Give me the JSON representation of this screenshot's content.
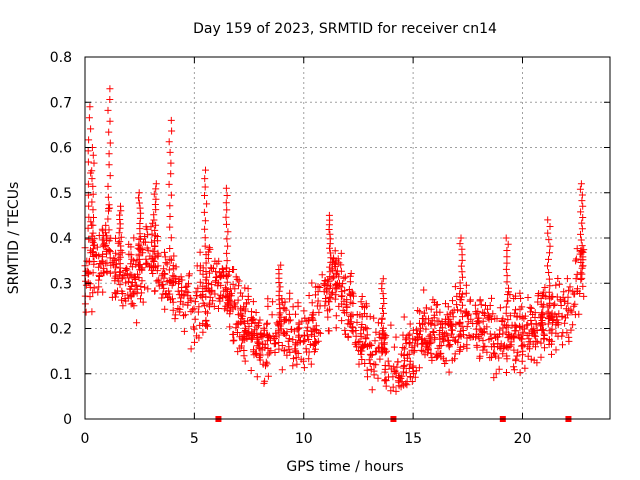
{
  "chart_data": {
    "type": "scatter",
    "title": "Day 159 of 2023, SRMTID for receiver cn14",
    "xlabel": "GPS time / hours",
    "ylabel": "SRMTID / TECUs",
    "xlim": [
      0,
      24
    ],
    "ylim": [
      0,
      0.8
    ],
    "grid": true,
    "marker": "+",
    "color": "#ff0000",
    "x_ticks": [
      0,
      5,
      10,
      15,
      20
    ],
    "x_tick_labels": [
      "0",
      "5",
      "10",
      "15",
      "20"
    ],
    "y_ticks": [
      0,
      0.1,
      0.2,
      0.3,
      0.4,
      0.5,
      0.6,
      0.7,
      0.8
    ],
    "y_tick_labels": [
      "0",
      "0.1",
      "0.2",
      "0.3",
      "0.4",
      "0.5",
      "0.6",
      "0.7",
      "0.8"
    ],
    "zero_markers_x": [
      6.1,
      14.1,
      19.1,
      22.1
    ],
    "trend": [
      [
        0.0,
        0.3
      ],
      [
        0.5,
        0.36
      ],
      [
        1.0,
        0.38
      ],
      [
        1.5,
        0.33
      ],
      [
        2.0,
        0.3
      ],
      [
        2.5,
        0.33
      ],
      [
        3.0,
        0.36
      ],
      [
        3.5,
        0.33
      ],
      [
        4.0,
        0.3
      ],
      [
        4.5,
        0.26
      ],
      [
        5.0,
        0.25
      ],
      [
        5.5,
        0.27
      ],
      [
        6.0,
        0.3
      ],
      [
        6.5,
        0.27
      ],
      [
        7.0,
        0.24
      ],
      [
        7.5,
        0.19
      ],
      [
        8.0,
        0.16
      ],
      [
        8.5,
        0.18
      ],
      [
        9.0,
        0.2
      ],
      [
        9.5,
        0.2
      ],
      [
        10.0,
        0.17
      ],
      [
        10.5,
        0.22
      ],
      [
        11.0,
        0.29
      ],
      [
        11.5,
        0.3
      ],
      [
        12.0,
        0.24
      ],
      [
        12.5,
        0.19
      ],
      [
        13.0,
        0.16
      ],
      [
        13.5,
        0.15
      ],
      [
        14.0,
        0.13
      ],
      [
        14.5,
        0.12
      ],
      [
        15.0,
        0.15
      ],
      [
        15.5,
        0.19
      ],
      [
        16.0,
        0.2
      ],
      [
        16.5,
        0.19
      ],
      [
        17.0,
        0.21
      ],
      [
        17.5,
        0.22
      ],
      [
        18.0,
        0.2
      ],
      [
        18.5,
        0.19
      ],
      [
        19.0,
        0.18
      ],
      [
        19.5,
        0.2
      ],
      [
        20.0,
        0.2
      ],
      [
        20.5,
        0.19
      ],
      [
        21.0,
        0.21
      ],
      [
        21.5,
        0.24
      ],
      [
        22.0,
        0.23
      ],
      [
        22.5,
        0.3
      ],
      [
        22.8,
        0.35
      ]
    ],
    "peaks": [
      {
        "x": 0.2,
        "y_max": 0.69
      },
      {
        "x": 0.35,
        "y_max": 0.6
      },
      {
        "x": 1.1,
        "y_max": 0.73
      },
      {
        "x": 1.6,
        "y_max": 0.47
      },
      {
        "x": 2.5,
        "y_max": 0.5
      },
      {
        "x": 3.2,
        "y_max": 0.52
      },
      {
        "x": 3.9,
        "y_max": 0.66
      },
      {
        "x": 5.5,
        "y_max": 0.55
      },
      {
        "x": 6.5,
        "y_max": 0.51
      },
      {
        "x": 8.9,
        "y_max": 0.34
      },
      {
        "x": 11.2,
        "y_max": 0.45
      },
      {
        "x": 13.6,
        "y_max": 0.31
      },
      {
        "x": 17.2,
        "y_max": 0.4
      },
      {
        "x": 19.3,
        "y_max": 0.4
      },
      {
        "x": 21.2,
        "y_max": 0.44
      },
      {
        "x": 22.7,
        "y_max": 0.52
      }
    ],
    "spread": 0.12,
    "point_count": 1500
  }
}
